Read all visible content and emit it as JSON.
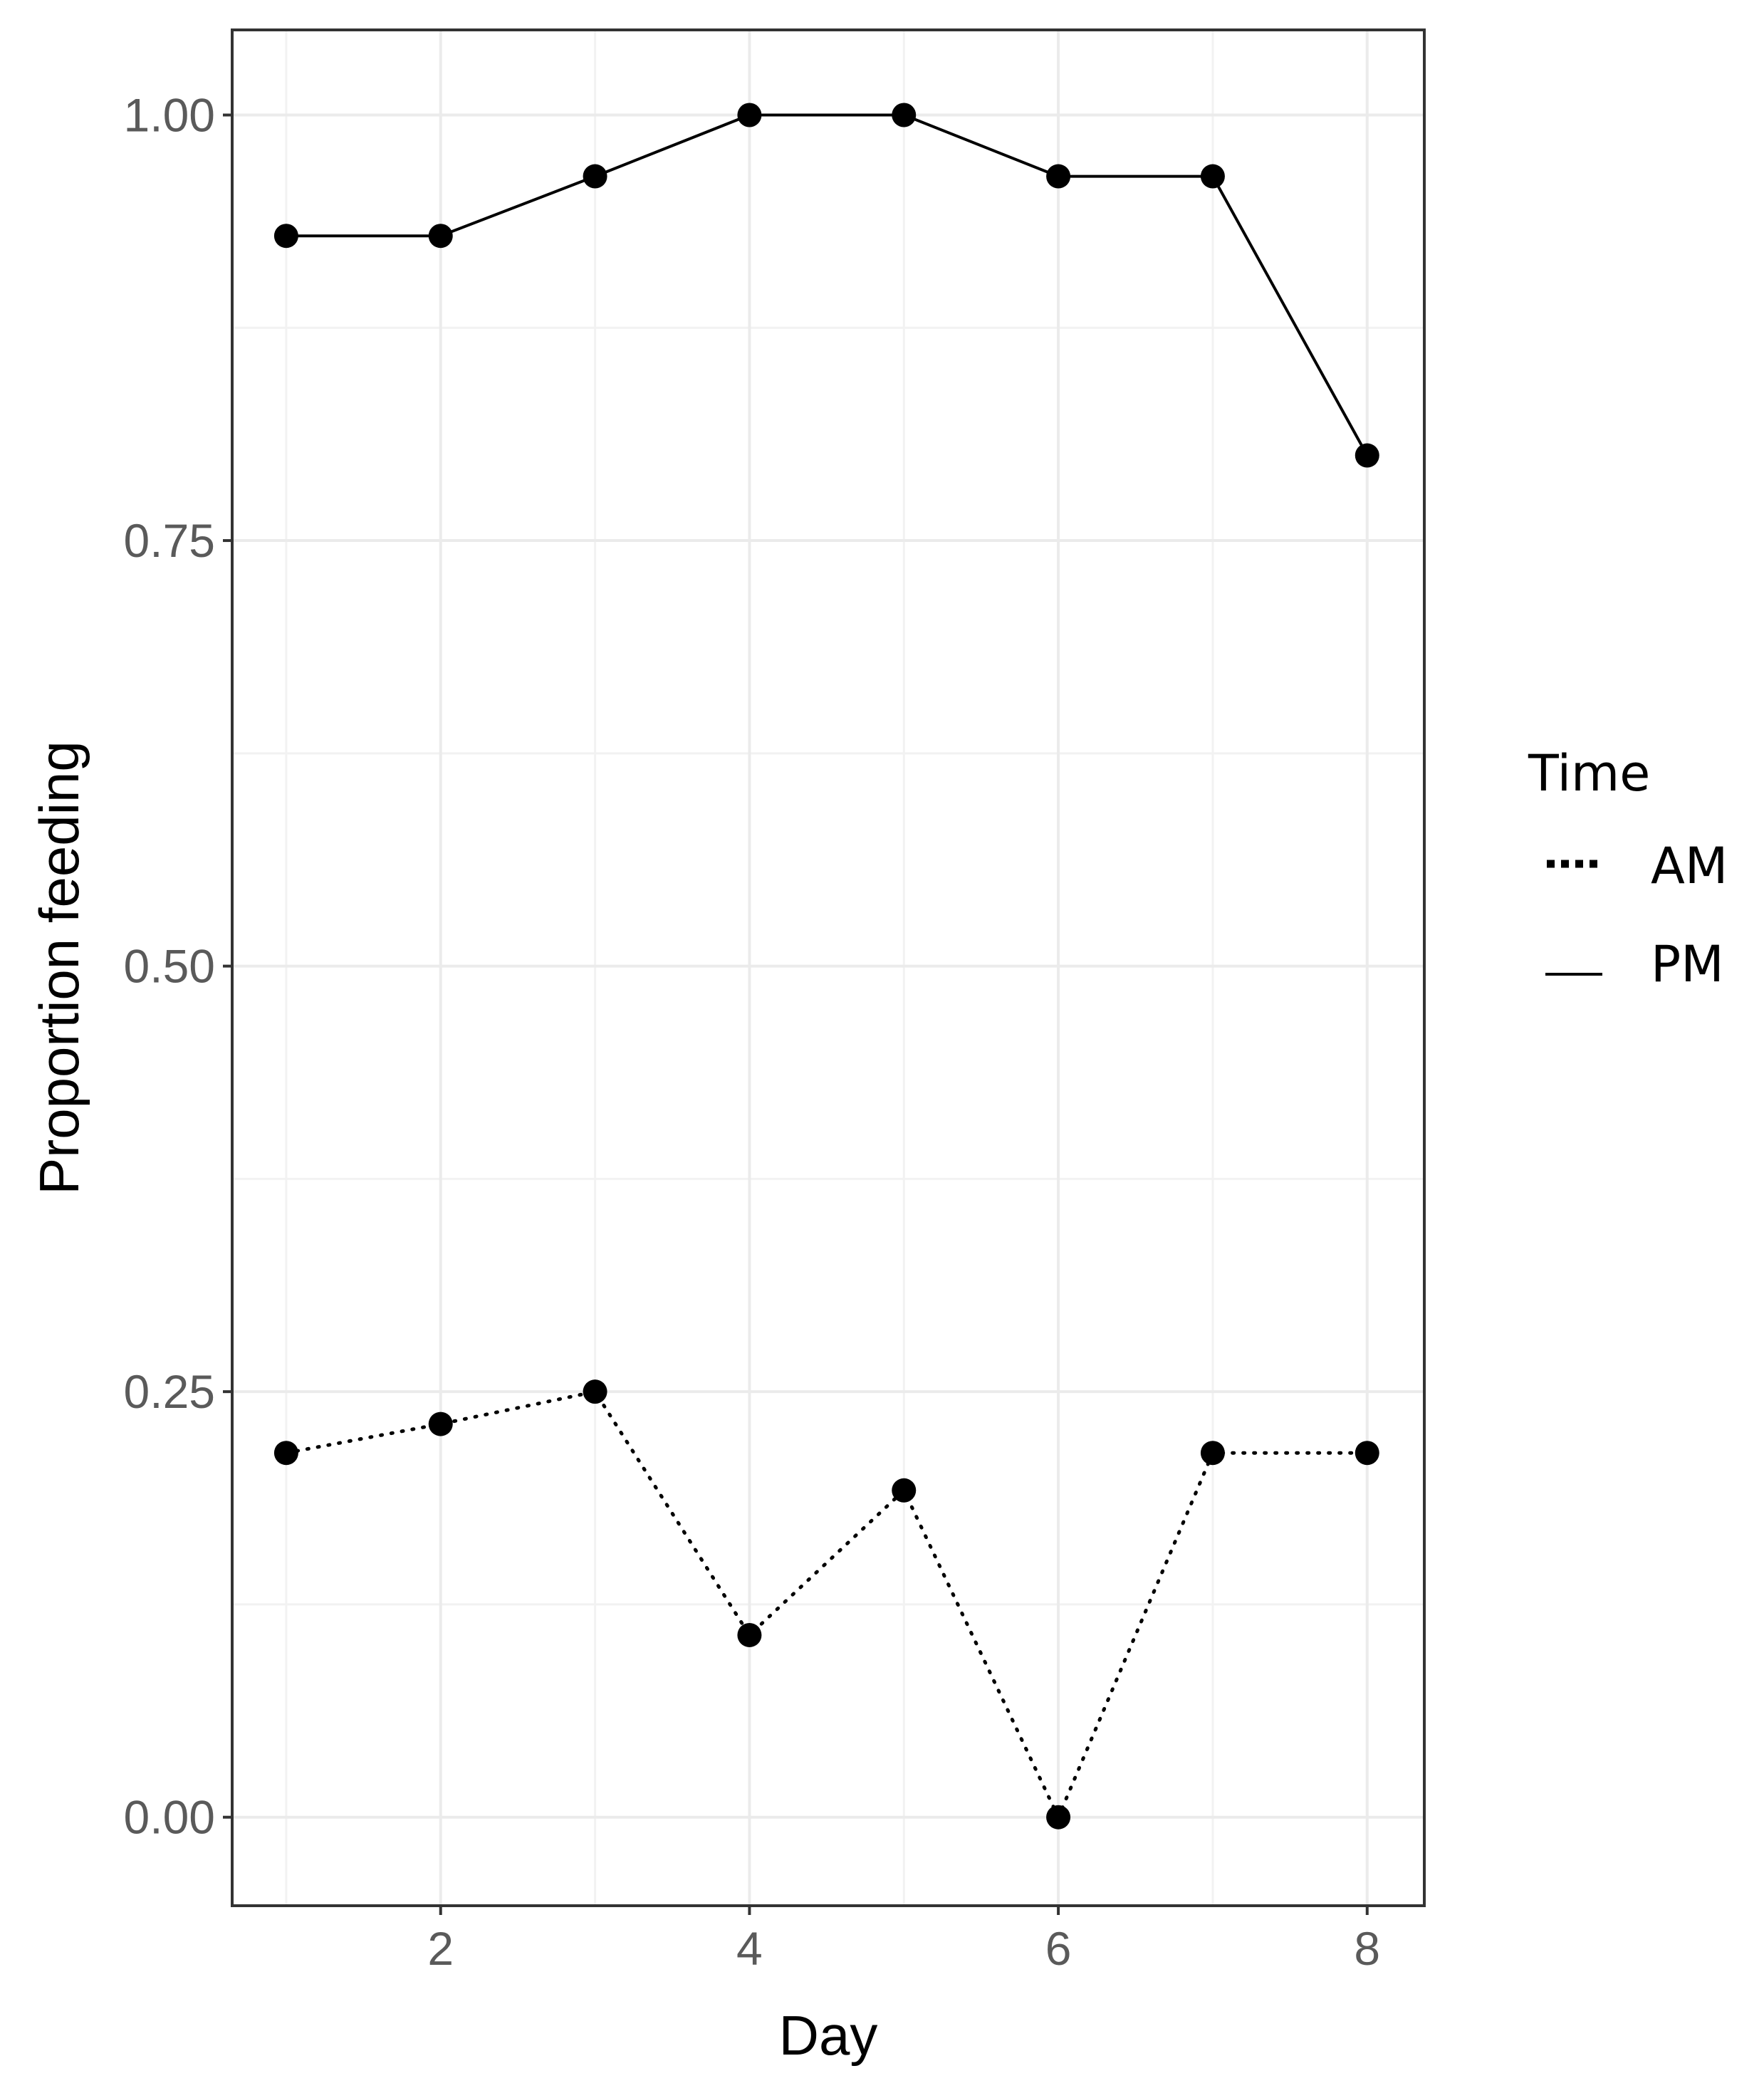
{
  "chart_data": {
    "type": "line",
    "title": "",
    "xlabel": "Day",
    "ylabel": "Proportion feeding",
    "x": [
      1,
      2,
      3,
      4,
      5,
      6,
      7,
      8
    ],
    "xlim": [
      0.65,
      8.37
    ],
    "ylim": [
      -0.052,
      1.05
    ],
    "x_ticks": [
      2,
      4,
      6,
      8
    ],
    "x_tick_labels": [
      "2",
      "4",
      "6",
      "8"
    ],
    "y_ticks": [
      0,
      0.25,
      0.5,
      0.75,
      1
    ],
    "y_tick_labels": [
      "0.00",
      "0.25",
      "0.50",
      "0.75",
      "1.00"
    ],
    "grid": true,
    "legend": {
      "title": "Time",
      "placement": "right",
      "entries": [
        {
          "label": "AM",
          "linetype": "dotted"
        },
        {
          "label": "PM",
          "linetype": "solid"
        }
      ]
    },
    "series": [
      {
        "name": "AM",
        "linetype": "dotted",
        "values": [
          0.214,
          0.231,
          0.25,
          0.107,
          0.192,
          0.0,
          0.214,
          0.214
        ]
      },
      {
        "name": "PM",
        "linetype": "solid",
        "values": [
          0.929,
          0.929,
          0.964,
          1.0,
          1.0,
          0.964,
          0.964,
          0.8
        ]
      }
    ],
    "colors": {
      "line": "#000000",
      "point": "#000000",
      "grid": "#ebebeb",
      "border": "#333333",
      "tick_text": "#5a5a5a"
    }
  }
}
